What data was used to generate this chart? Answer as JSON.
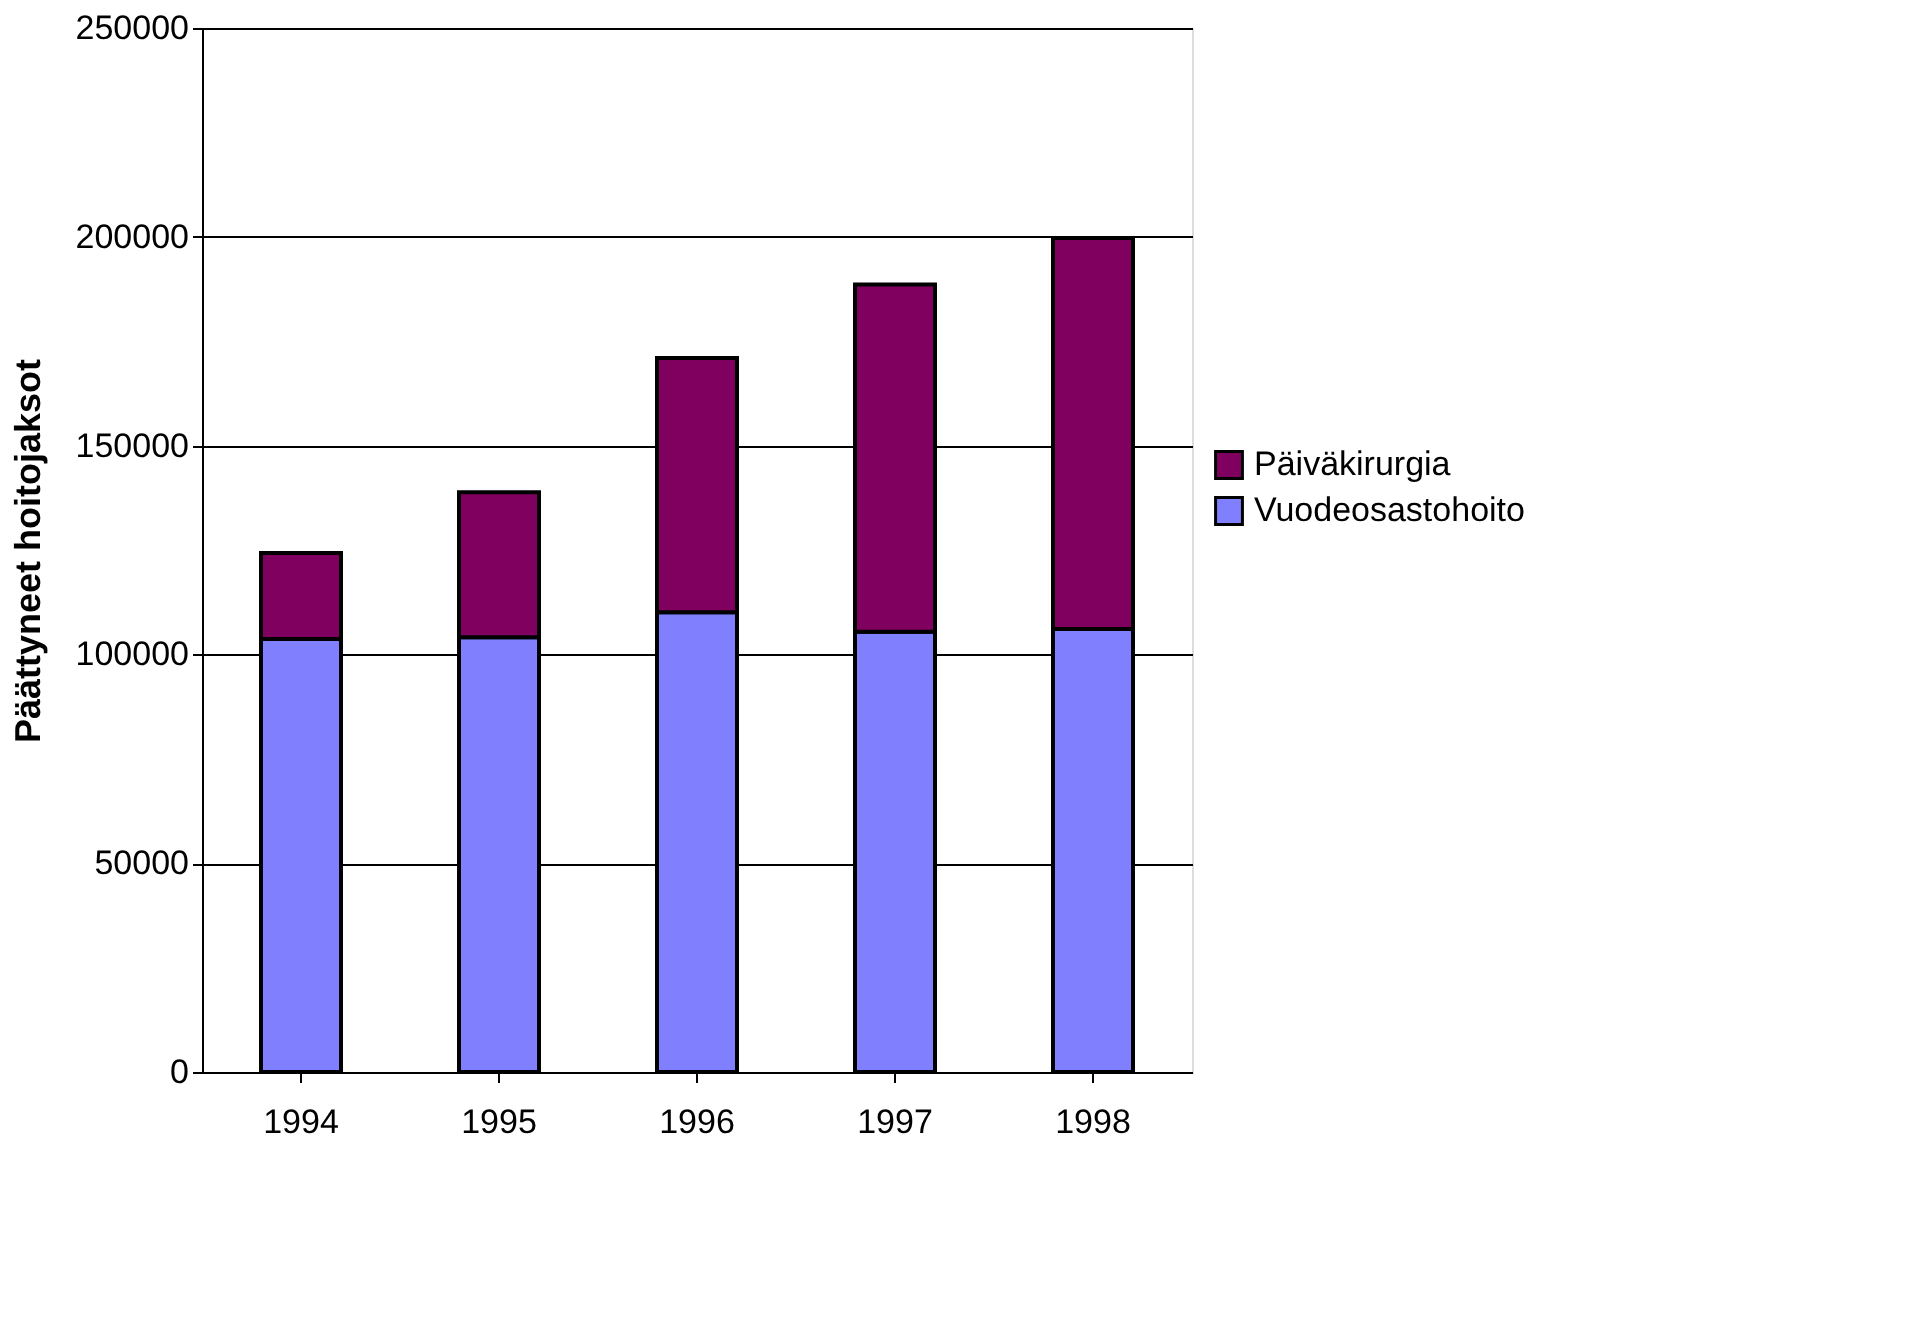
{
  "chart_data": {
    "type": "bar",
    "stacked": true,
    "ylabel": "Päättyneet hoitojaksot",
    "categories": [
      "1994",
      "1995",
      "1996",
      "1997",
      "1998"
    ],
    "series": [
      {
        "name": "Vuodeosastohoito",
        "color": "#8080ff",
        "values": [
          103700,
          104100,
          110100,
          105400,
          106100
        ]
      },
      {
        "name": "Päiväkirurgia",
        "color": "#800060",
        "values": [
          20600,
          34700,
          60900,
          83200,
          93600
        ]
      }
    ],
    "ylim": [
      0,
      250000
    ],
    "yticks": [
      0,
      50000,
      100000,
      150000,
      200000,
      250000
    ],
    "grid": "y",
    "legend": "right"
  }
}
